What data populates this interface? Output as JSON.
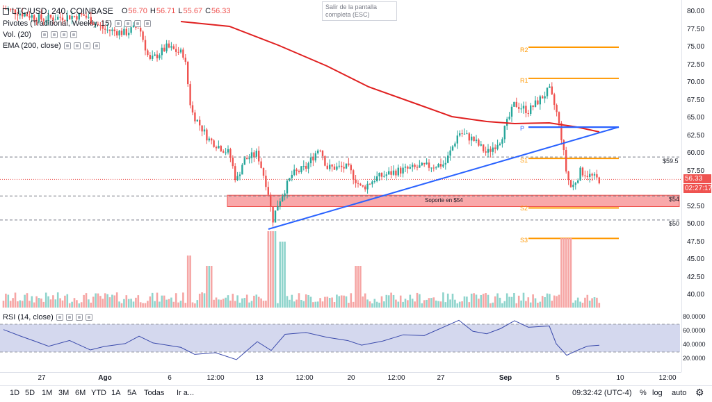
{
  "header": {
    "symbol": "LTC/USD, 240, COINBASE",
    "ohlc": {
      "o_label": "O",
      "o": "56.70",
      "h_label": "H",
      "h": "56.71",
      "l_label": "L",
      "l": "55.67",
      "c_label": "C",
      "c": "56.33"
    },
    "indicators": [
      {
        "label": "Pivotes (Traditional, Weekly, 15)"
      },
      {
        "label": "Vol. (20)"
      },
      {
        "label": "EMA (200, close)"
      }
    ]
  },
  "tooltip": "Salir de la pantalla completa (ESC)",
  "rsi_label": "RSI (14, close)",
  "price_axis": [
    "80.00",
    "77.50",
    "75.00",
    "72.50",
    "70.00",
    "67.50",
    "65.00",
    "62.50",
    "60.00",
    "57.50",
    "55.00",
    "52.50",
    "50.00",
    "47.50",
    "45.00",
    "42.50",
    "40.00"
  ],
  "rsi_axis": [
    "80.0000",
    "60.0000",
    "40.0000",
    "20.0000"
  ],
  "current_price": "56.33",
  "countdown": "02:27:17",
  "levels": {
    "r2": "R2",
    "r1": "R1",
    "p": "P",
    "s1": "S1",
    "s2": "S2",
    "s3": "S3",
    "l595": "$59.5",
    "l54": "$54",
    "l50": "$50",
    "support_text": "Soporte en $54"
  },
  "time_axis": [
    "27",
    "Ago",
    "6",
    "12:00",
    "13",
    "12:00",
    "20",
    "12:00",
    "27",
    "Sep",
    "5",
    "10",
    "12:00"
  ],
  "bottom_bar": {
    "ranges": [
      "1D",
      "5D",
      "1M",
      "3M",
      "6M",
      "YTD",
      "1A",
      "5A",
      "Todas"
    ],
    "goto": "Ir a...",
    "clock": "09:32:42 (UTC-4)",
    "pct": "%",
    "log": "log",
    "auto": "auto"
  },
  "colors": {
    "up": "#26a69a",
    "down": "#ef5350",
    "ema": "#e02020",
    "pivot": "#ff9800",
    "trend": "#2962ff",
    "support_fill": "#f9a8aa",
    "rsi_band": "#d4d8ee",
    "rsi_line": "#3949ab"
  }
}
